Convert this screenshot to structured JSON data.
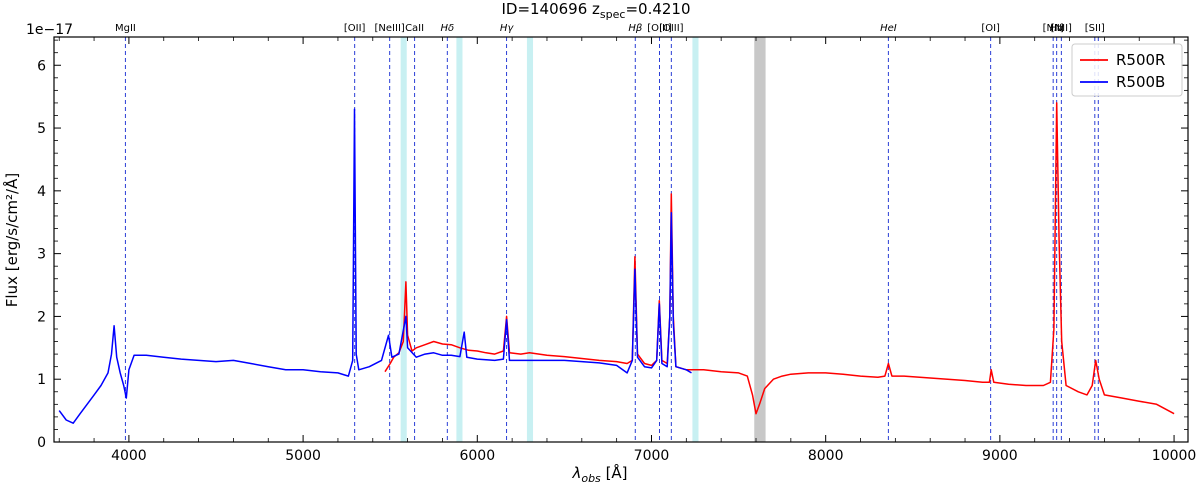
{
  "chart_data": {
    "type": "line",
    "title": "ID=140696  z",
    "title_sub": "spec",
    "title_tail": "=0.4210",
    "xlabel": "λ",
    "xlabel_sub": "obs",
    "xlabel_tail": " [Å]",
    "ylabel": "Flux [erg/s/cm²/Å]",
    "offset_text": "1e−17",
    "xlim": [
      3570,
      10080
    ],
    "ylim": [
      0,
      6.45
    ],
    "x_ticks": [
      4000,
      5000,
      6000,
      7000,
      8000,
      9000,
      10000
    ],
    "y_ticks": [
      0,
      1,
      2,
      3,
      4,
      5,
      6
    ],
    "grid": false,
    "legend_position": "top-right",
    "legend": [
      {
        "label": "R500R",
        "color": "#ff0000"
      },
      {
        "label": "R500B",
        "color": "#0000ff"
      }
    ],
    "masked_regions": [
      {
        "x0": 5560,
        "x1": 5595,
        "color": "#c8f0f2"
      },
      {
        "x0": 5880,
        "x1": 5915,
        "color": "#c8f0f2"
      },
      {
        "x0": 6285,
        "x1": 6320,
        "color": "#c8f0f2"
      },
      {
        "x0": 7235,
        "x1": 7270,
        "color": "#c8f0f2"
      },
      {
        "x0": 7590,
        "x1": 7655,
        "color": "#c8c8c8"
      }
    ],
    "emission_lines": [
      {
        "label": "MgII",
        "x": 3980
      },
      {
        "label": "[OII]",
        "x": 5296
      },
      {
        "label": "[NeIII]",
        "x": 5497
      },
      {
        "label": "CaII",
        "x": 5640
      },
      {
        "label": "Hδ",
        "x": 5828
      },
      {
        "label": "Hγ",
        "x": 6168
      },
      {
        "label": "Hβ",
        "x": 6907
      },
      {
        "label": "[OIII]",
        "x": 7046
      },
      {
        "label": "[OIII]",
        "x": 7114
      },
      {
        "label": "HeI",
        "x": 8360
      },
      {
        "label": "[OI]",
        "x": 8947
      },
      {
        "label": "[NII]",
        "x": 9306
      },
      {
        "label": "Hα",
        "x": 9326
      },
      {
        "label": "[NII]",
        "x": 9353
      },
      {
        "label": "[SII]",
        "x": 9545
      },
      {
        "label": "",
        "x": 9565
      }
    ],
    "series": [
      {
        "name": "R500R",
        "color": "#ff0000",
        "points": [
          [
            5470,
            1.12
          ],
          [
            5500,
            1.25
          ],
          [
            5520,
            1.35
          ],
          [
            5550,
            1.42
          ],
          [
            5575,
            1.6
          ],
          [
            5590,
            2.55
          ],
          [
            5600,
            1.7
          ],
          [
            5625,
            1.45
          ],
          [
            5650,
            1.5
          ],
          [
            5700,
            1.55
          ],
          [
            5750,
            1.6
          ],
          [
            5800,
            1.56
          ],
          [
            5850,
            1.55
          ],
          [
            5900,
            1.5
          ],
          [
            5950,
            1.46
          ],
          [
            6000,
            1.45
          ],
          [
            6050,
            1.42
          ],
          [
            6100,
            1.4
          ],
          [
            6150,
            1.45
          ],
          [
            6168,
            2.0
          ],
          [
            6185,
            1.42
          ],
          [
            6250,
            1.4
          ],
          [
            6300,
            1.42
          ],
          [
            6400,
            1.38
          ],
          [
            6500,
            1.36
          ],
          [
            6600,
            1.33
          ],
          [
            6700,
            1.3
          ],
          [
            6800,
            1.28
          ],
          [
            6860,
            1.25
          ],
          [
            6890,
            1.3
          ],
          [
            6905,
            2.95
          ],
          [
            6920,
            1.4
          ],
          [
            6960,
            1.25
          ],
          [
            7000,
            1.22
          ],
          [
            7030,
            1.3
          ],
          [
            7045,
            2.25
          ],
          [
            7060,
            1.3
          ],
          [
            7090,
            1.25
          ],
          [
            7105,
            2.0
          ],
          [
            7114,
            3.95
          ],
          [
            7125,
            2.0
          ],
          [
            7140,
            1.2
          ],
          [
            7200,
            1.15
          ],
          [
            7300,
            1.15
          ],
          [
            7400,
            1.12
          ],
          [
            7500,
            1.1
          ],
          [
            7550,
            1.05
          ],
          [
            7580,
            0.75
          ],
          [
            7600,
            0.45
          ],
          [
            7620,
            0.6
          ],
          [
            7650,
            0.85
          ],
          [
            7700,
            1.0
          ],
          [
            7750,
            1.05
          ],
          [
            7800,
            1.08
          ],
          [
            7900,
            1.1
          ],
          [
            8000,
            1.1
          ],
          [
            8100,
            1.08
          ],
          [
            8200,
            1.05
          ],
          [
            8300,
            1.03
          ],
          [
            8340,
            1.05
          ],
          [
            8360,
            1.25
          ],
          [
            8380,
            1.05
          ],
          [
            8450,
            1.05
          ],
          [
            8600,
            1.02
          ],
          [
            8700,
            1.0
          ],
          [
            8800,
            0.98
          ],
          [
            8900,
            0.95
          ],
          [
            8940,
            0.95
          ],
          [
            8950,
            1.15
          ],
          [
            8965,
            0.95
          ],
          [
            9050,
            0.92
          ],
          [
            9150,
            0.9
          ],
          [
            9250,
            0.9
          ],
          [
            9290,
            0.95
          ],
          [
            9310,
            1.8
          ],
          [
            9326,
            5.4
          ],
          [
            9340,
            3.2
          ],
          [
            9355,
            1.6
          ],
          [
            9380,
            0.9
          ],
          [
            9450,
            0.8
          ],
          [
            9500,
            0.75
          ],
          [
            9530,
            0.9
          ],
          [
            9550,
            1.3
          ],
          [
            9570,
            1.0
          ],
          [
            9600,
            0.75
          ],
          [
            9700,
            0.7
          ],
          [
            9800,
            0.65
          ],
          [
            9900,
            0.6
          ],
          [
            10000,
            0.45
          ]
        ]
      },
      {
        "name": "R500B",
        "color": "#0000ff",
        "points": [
          [
            3600,
            0.5
          ],
          [
            3640,
            0.35
          ],
          [
            3680,
            0.3
          ],
          [
            3720,
            0.45
          ],
          [
            3760,
            0.6
          ],
          [
            3800,
            0.75
          ],
          [
            3840,
            0.9
          ],
          [
            3880,
            1.1
          ],
          [
            3900,
            1.4
          ],
          [
            3915,
            1.85
          ],
          [
            3930,
            1.35
          ],
          [
            3950,
            1.1
          ],
          [
            3970,
            0.9
          ],
          [
            3985,
            0.7
          ],
          [
            4000,
            1.15
          ],
          [
            4030,
            1.38
          ],
          [
            4100,
            1.38
          ],
          [
            4200,
            1.35
          ],
          [
            4300,
            1.32
          ],
          [
            4400,
            1.3
          ],
          [
            4500,
            1.28
          ],
          [
            4600,
            1.3
          ],
          [
            4700,
            1.25
          ],
          [
            4800,
            1.2
          ],
          [
            4900,
            1.15
          ],
          [
            5000,
            1.15
          ],
          [
            5100,
            1.12
          ],
          [
            5200,
            1.1
          ],
          [
            5260,
            1.05
          ],
          [
            5285,
            1.3
          ],
          [
            5295,
            5.3
          ],
          [
            5305,
            1.4
          ],
          [
            5320,
            1.15
          ],
          [
            5380,
            1.2
          ],
          [
            5450,
            1.3
          ],
          [
            5490,
            1.7
          ],
          [
            5510,
            1.35
          ],
          [
            5550,
            1.4
          ],
          [
            5590,
            2.0
          ],
          [
            5600,
            1.5
          ],
          [
            5650,
            1.35
          ],
          [
            5700,
            1.4
          ],
          [
            5750,
            1.42
          ],
          [
            5800,
            1.38
          ],
          [
            5850,
            1.38
          ],
          [
            5900,
            1.36
          ],
          [
            5925,
            1.75
          ],
          [
            5940,
            1.35
          ],
          [
            6000,
            1.32
          ],
          [
            6100,
            1.3
          ],
          [
            6150,
            1.32
          ],
          [
            6168,
            1.95
          ],
          [
            6185,
            1.3
          ],
          [
            6300,
            1.3
          ],
          [
            6400,
            1.3
          ],
          [
            6500,
            1.3
          ],
          [
            6600,
            1.28
          ],
          [
            6700,
            1.26
          ],
          [
            6800,
            1.22
          ],
          [
            6860,
            1.1
          ],
          [
            6890,
            1.3
          ],
          [
            6905,
            2.75
          ],
          [
            6920,
            1.35
          ],
          [
            6960,
            1.2
          ],
          [
            7000,
            1.18
          ],
          [
            7030,
            1.3
          ],
          [
            7045,
            2.2
          ],
          [
            7060,
            1.25
          ],
          [
            7090,
            1.2
          ],
          [
            7105,
            2.0
          ],
          [
            7114,
            3.65
          ],
          [
            7125,
            1.9
          ],
          [
            7140,
            1.2
          ],
          [
            7200,
            1.15
          ],
          [
            7230,
            1.1
          ]
        ]
      }
    ]
  }
}
